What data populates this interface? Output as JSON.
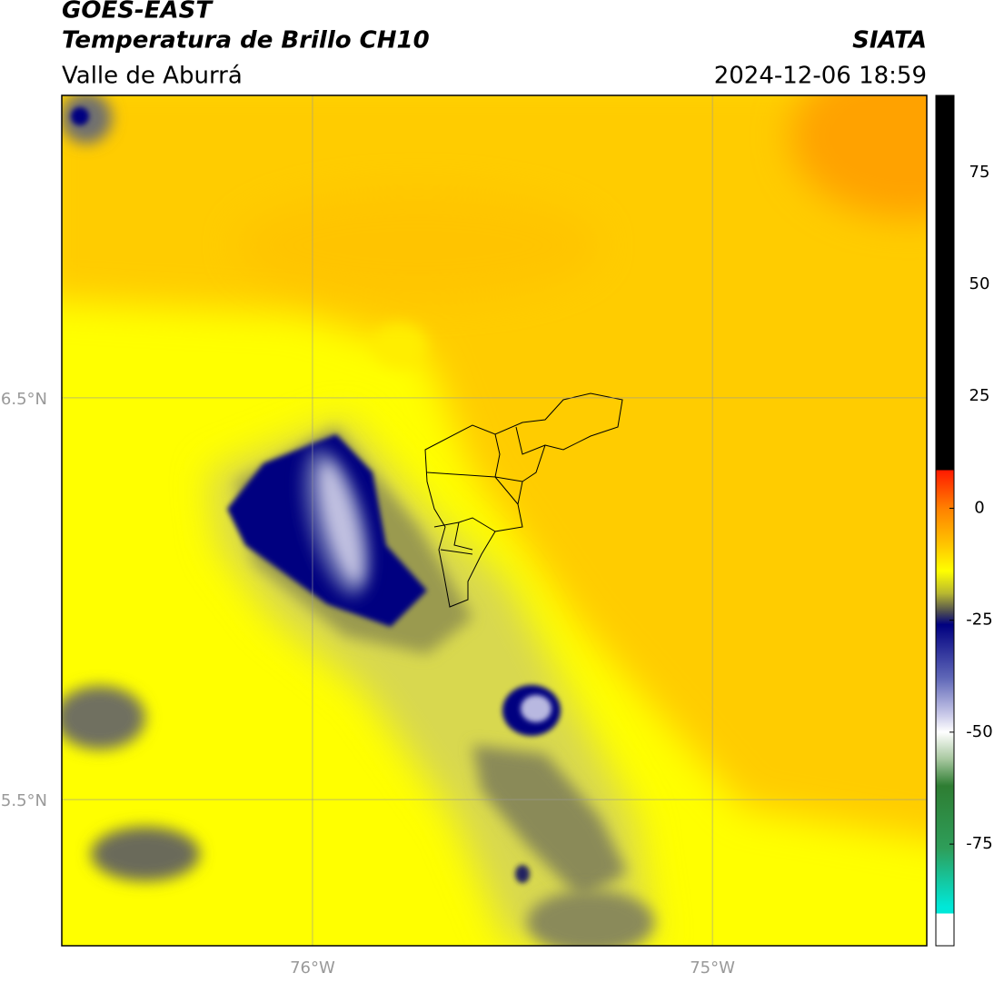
{
  "header": {
    "title": "GOES-EAST",
    "subtitle": "Temperatura de Brillo CH10",
    "source": "SIATA",
    "region": "Valle de Aburrá",
    "datetime": "2024-12-06 18:59"
  },
  "map": {
    "xlim": [
      -76.627,
      -74.464
    ],
    "ylim": [
      5.136,
      7.253
    ],
    "grid": true,
    "xticks": [
      {
        "value": -76,
        "label": "76°W"
      },
      {
        "value": -75,
        "label": "75°W"
      }
    ],
    "yticks": [
      {
        "value": 6.5,
        "label": "6.5°N"
      },
      {
        "value": 5.5,
        "label": "5.5°N"
      }
    ]
  },
  "colorbar": {
    "lim": [
      -97.7,
      92.2
    ],
    "ticks": [
      75,
      50,
      25,
      0,
      -25,
      -50,
      -75
    ],
    "stops": [
      {
        "value": 92.2,
        "color": "#000000"
      },
      {
        "value": 8.5,
        "color": "#000000"
      },
      {
        "value": 8.5,
        "color": "#ff1a00"
      },
      {
        "value": 0,
        "color": "#ff8000"
      },
      {
        "value": -8,
        "color": "#ffc400"
      },
      {
        "value": -14,
        "color": "#ffff00"
      },
      {
        "value": -19,
        "color": "#b8b830"
      },
      {
        "value": -23,
        "color": "#505050"
      },
      {
        "value": -26,
        "color": "#000080"
      },
      {
        "value": -38,
        "color": "#6068b8"
      },
      {
        "value": -46,
        "color": "#c8c8e8"
      },
      {
        "value": -50,
        "color": "#ffffff"
      },
      {
        "value": -56,
        "color": "#a8c8a0"
      },
      {
        "value": -62,
        "color": "#2e7d32"
      },
      {
        "value": -76,
        "color": "#2e9e5a"
      },
      {
        "value": -89,
        "color": "#00e8d8"
      },
      {
        "value": -90.5,
        "color": "#00e8d8"
      },
      {
        "value": -90.5,
        "color": "#ffffff"
      },
      {
        "value": -97.7,
        "color": "#ffffff"
      }
    ]
  }
}
